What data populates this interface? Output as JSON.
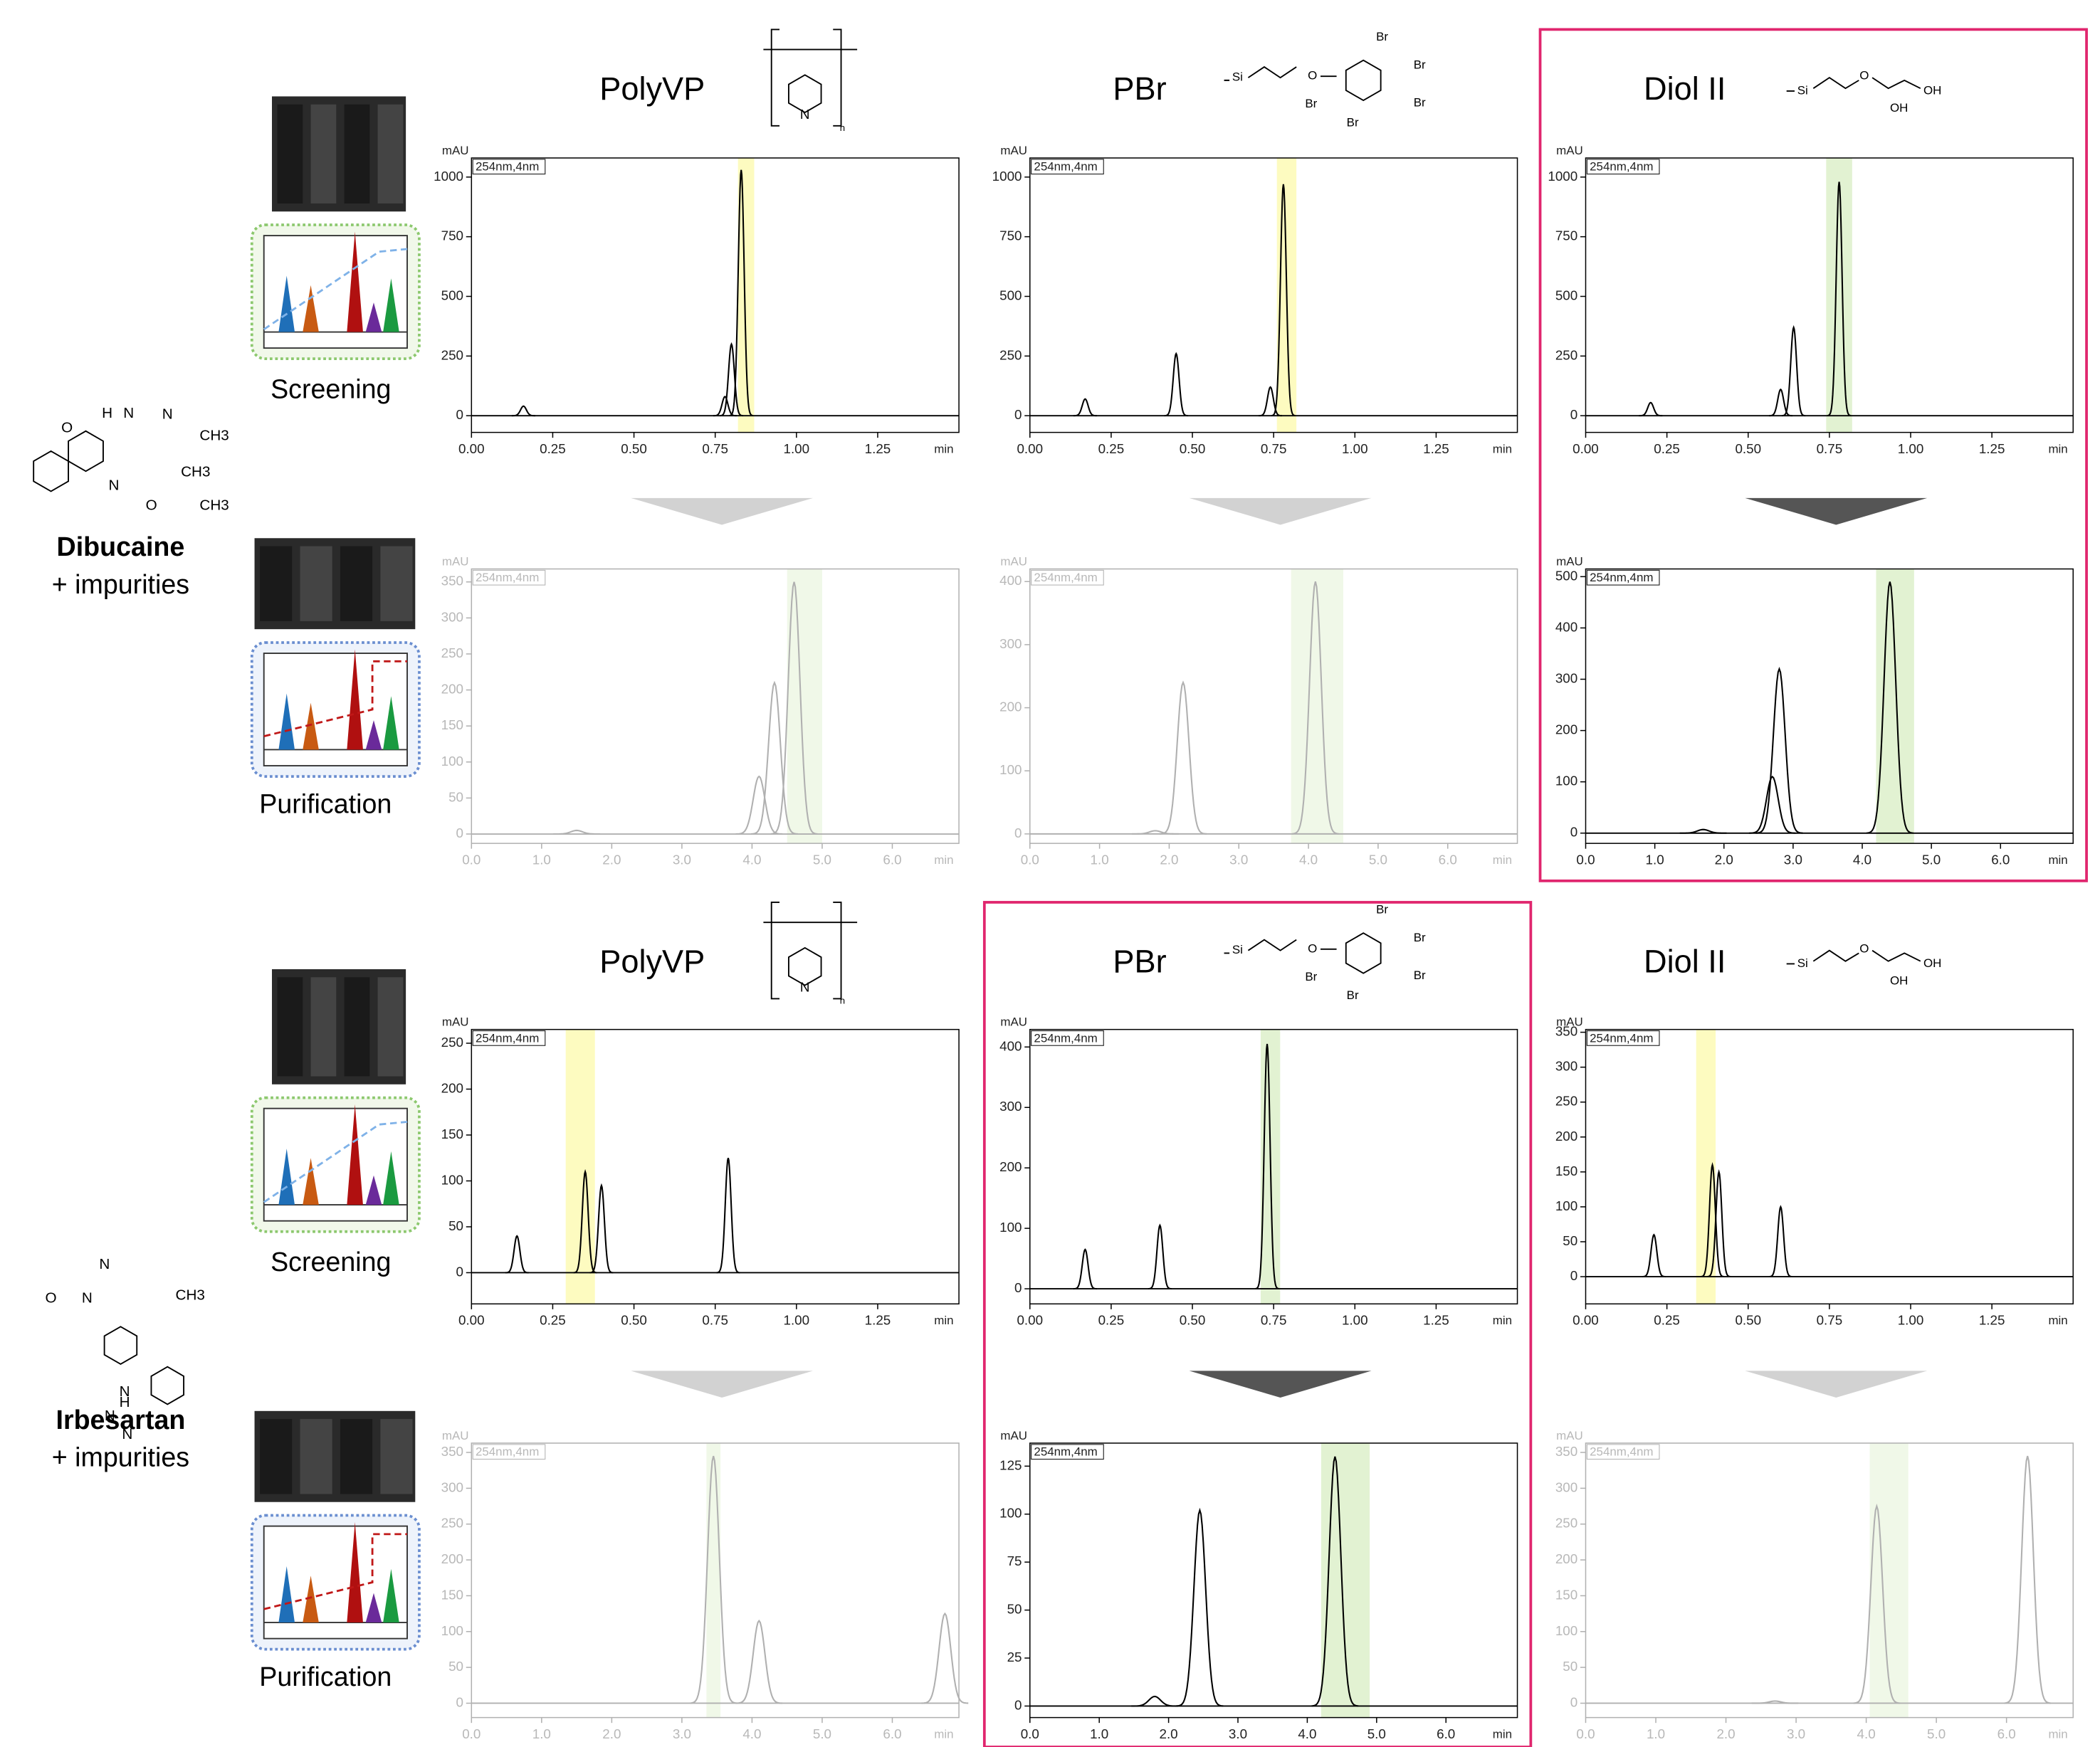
{
  "rows": [
    {
      "compound": "Dibucaine",
      "note": "+ impurities",
      "screening_label": "Screening",
      "purification_label": "Purification",
      "structure": [
        "O",
        "H",
        "N",
        "N",
        "CH3",
        "CH3",
        "N",
        "O",
        "CH3"
      ],
      "columns": [
        {
          "name": "PolyVP",
          "structure": [
            "N",
            "n"
          ],
          "selected": false,
          "screening": {
            "type": "line",
            "y_unit": "mAU",
            "x_unit": "min",
            "detector": "254nm,4nm",
            "active": true,
            "highlight": [
              0.82,
              0.87
            ],
            "highlight_color": "#fdfbc0",
            "xlim": [
              0,
              1.5
            ],
            "xticks": [
              {
                "value": 0,
                "label": "0.00"
              },
              0.25,
              {
                "value": 0.5,
                "label": "0.50"
              },
              0.75,
              {
                "value": 1,
                "label": "1.00"
              },
              1.25
            ],
            "ylim": [
              -70,
              1080
            ],
            "yticks": [
              0,
              250,
              500,
              750,
              1000
            ],
            "peaks": {
              "x": [
                0.16,
                0.78,
                0.8,
                0.83
              ],
              "values": [
                40,
                80,
                300,
                1030
              ]
            }
          },
          "purification": {
            "type": "line",
            "y_unit": "mAU",
            "x_unit": "min",
            "detector": "254nm,4nm",
            "active": false,
            "highlight": [
              4.5,
              5.0
            ],
            "highlight_color": "#e2f2d2",
            "xlim": [
              0,
              6.95
            ],
            "xticks": [
              {
                "value": 0,
                "label": "0.0"
              },
              {
                "value": 1,
                "label": "1.0"
              },
              {
                "value": 2,
                "label": "2.0"
              },
              {
                "value": 3,
                "label": "3.0"
              },
              {
                "value": 4,
                "label": "4.0"
              },
              {
                "value": 5,
                "label": "5.0"
              },
              {
                "value": 6,
                "label": "6.0"
              }
            ],
            "ylim": [
              -13,
              368
            ],
            "yticks": [
              0,
              50,
              100,
              150,
              200,
              250,
              300,
              350
            ],
            "peaks": {
              "x": [
                1.5,
                4.1,
                4.32,
                4.6
              ],
              "values": [
                5,
                80,
                210,
                350
              ]
            }
          }
        },
        {
          "name": "PBr",
          "structure": [
            "Si",
            "O",
            "Br",
            "Br",
            "Br",
            "Br",
            "Br"
          ],
          "selected": false,
          "screening": {
            "type": "line",
            "y_unit": "mAU",
            "x_unit": "min",
            "detector": "254nm,4nm",
            "active": true,
            "highlight": [
              0.76,
              0.82
            ],
            "highlight_color": "#fdfbc0",
            "xlim": [
              0,
              1.5
            ],
            "xticks": [
              {
                "value": 0,
                "label": "0.00"
              },
              0.25,
              {
                "value": 0.5,
                "label": "0.50"
              },
              0.75,
              {
                "value": 1,
                "label": "1.00"
              },
              1.25
            ],
            "ylim": [
              -70,
              1080
            ],
            "yticks": [
              0,
              250,
              500,
              750,
              1000
            ],
            "peaks": {
              "x": [
                0.17,
                0.45,
                0.74,
                0.78
              ],
              "values": [
                70,
                260,
                120,
                970
              ]
            }
          },
          "purification": {
            "type": "line",
            "y_unit": "mAU",
            "x_unit": "min",
            "detector": "254nm,4nm",
            "active": false,
            "highlight": [
              3.75,
              4.5
            ],
            "highlight_color": "#e2f2d2",
            "xlim": [
              0,
              7.0
            ],
            "xticks": [
              {
                "value": 0,
                "label": "0.0"
              },
              {
                "value": 1,
                "label": "1.0"
              },
              {
                "value": 2,
                "label": "2.0"
              },
              {
                "value": 3,
                "label": "3.0"
              },
              {
                "value": 4,
                "label": "4.0"
              },
              {
                "value": 5,
                "label": "5.0"
              },
              {
                "value": 6,
                "label": "6.0"
              }
            ],
            "ylim": [
              -15,
              420
            ],
            "yticks": [
              0,
              100,
              200,
              300,
              400
            ],
            "peaks": {
              "x": [
                1.8,
                2.2,
                4.1
              ],
              "values": [
                5,
                240,
                400
              ]
            }
          }
        },
        {
          "name": "Diol II",
          "structure": [
            "Si",
            "O",
            "OH",
            "OH"
          ],
          "selected": true,
          "screening": {
            "type": "line",
            "y_unit": "mAU",
            "x_unit": "min",
            "detector": "254nm,4nm",
            "active": true,
            "highlight": [
              0.74,
              0.82
            ],
            "highlight_color": "#e2f2d2",
            "xlim": [
              0,
              1.5
            ],
            "xticks": [
              {
                "value": 0,
                "label": "0.00"
              },
              0.25,
              {
                "value": 0.5,
                "label": "0.50"
              },
              0.75,
              {
                "value": 1,
                "label": "1.00"
              },
              1.25
            ],
            "ylim": [
              -70,
              1080
            ],
            "yticks": [
              0,
              250,
              500,
              750,
              1000
            ],
            "peaks": {
              "x": [
                0.2,
                0.6,
                0.64,
                0.78
              ],
              "values": [
                55,
                110,
                370,
                980
              ]
            }
          },
          "purification": {
            "type": "line",
            "y_unit": "mAU",
            "x_unit": "min",
            "detector": "254nm,4nm",
            "active": true,
            "highlight": [
              4.2,
              4.75
            ],
            "highlight_color": "#e2f2d2",
            "xlim": [
              0,
              7.05
            ],
            "xticks": [
              {
                "value": 0,
                "label": "0.0"
              },
              {
                "value": 1,
                "label": "1.0"
              },
              {
                "value": 2,
                "label": "2.0"
              },
              {
                "value": 3,
                "label": "3.0"
              },
              {
                "value": 4,
                "label": "4.0"
              },
              {
                "value": 5,
                "label": "5.0"
              },
              {
                "value": 6,
                "label": "6.0"
              }
            ],
            "ylim": [
              -20,
              515
            ],
            "yticks": [
              0,
              100,
              200,
              300,
              400,
              500
            ],
            "peaks": {
              "x": [
                1.7,
                2.7,
                2.8,
                4.4
              ],
              "values": [
                7,
                110,
                320,
                490
              ]
            }
          }
        }
      ]
    },
    {
      "compound": "Irbesartan",
      "note": "+ impurities",
      "screening_label": "Screening",
      "purification_label": "Purification",
      "structure": [
        "N",
        "O",
        "N",
        "CH3",
        "N",
        "H",
        "N",
        "N"
      ],
      "columns": [
        {
          "name": "PolyVP",
          "structure": [
            "N",
            "n"
          ],
          "selected": false,
          "screening": {
            "type": "line",
            "y_unit": "mAU",
            "x_unit": "min",
            "detector": "254nm,4nm",
            "active": true,
            "highlight": [
              0.29,
              0.38
            ],
            "highlight_color": "#fdfbc0",
            "xlim": [
              0,
              1.5
            ],
            "xticks": [
              {
                "value": 0,
                "label": "0.00"
              },
              0.25,
              {
                "value": 0.5,
                "label": "0.50"
              },
              0.75,
              {
                "value": 1,
                "label": "1.00"
              },
              1.25
            ],
            "ylim": [
              -34,
              265
            ],
            "yticks": [
              0,
              50,
              100,
              150,
              200,
              250
            ],
            "peaks": {
              "x": [
                0.14,
                0.35,
                0.4,
                0.79
              ],
              "values": [
                40,
                110,
                95,
                125
              ]
            }
          },
          "purification": {
            "type": "line",
            "y_unit": "mAU",
            "x_unit": "min",
            "detector": "254nm,4nm",
            "active": false,
            "highlight": [
              3.35,
              3.55
            ],
            "highlight_color": "#e2f2d2",
            "xlim": [
              0,
              6.95
            ],
            "xticks": [
              {
                "value": 0,
                "label": "0.0"
              },
              {
                "value": 1,
                "label": "1.0"
              },
              {
                "value": 2,
                "label": "2.0"
              },
              {
                "value": 3,
                "label": "3.0"
              },
              {
                "value": 4,
                "label": "4.0"
              },
              {
                "value": 5,
                "label": "5.0"
              },
              {
                "value": 6,
                "label": "6.0"
              }
            ],
            "ylim": [
              -20,
              363
            ],
            "yticks": [
              0,
              50,
              100,
              150,
              200,
              250,
              300,
              350
            ],
            "peaks": {
              "x": [
                3.45,
                4.1,
                6.75
              ],
              "values": [
                345,
                115,
                125
              ]
            }
          }
        },
        {
          "name": "PBr",
          "structure": [
            "Si",
            "O",
            "Br",
            "Br",
            "Br",
            "Br",
            "Br"
          ],
          "selected": true,
          "screening": {
            "type": "line",
            "y_unit": "mAU",
            "x_unit": "min",
            "detector": "254nm,4nm",
            "active": true,
            "highlight": [
              0.71,
              0.77
            ],
            "highlight_color": "#e2f2d2",
            "xlim": [
              0,
              1.5
            ],
            "xticks": [
              {
                "value": 0,
                "label": "0.00"
              },
              0.25,
              {
                "value": 0.5,
                "label": "0.50"
              },
              0.75,
              {
                "value": 1,
                "label": "1.00"
              },
              1.25
            ],
            "ylim": [
              -25,
              429
            ],
            "yticks": [
              0,
              100,
              200,
              300,
              400
            ],
            "peaks": {
              "x": [
                0.17,
                0.4,
                0.73
              ],
              "values": [
                65,
                105,
                405
              ]
            }
          },
          "purification": {
            "type": "line",
            "y_unit": "mAU",
            "x_unit": "min",
            "detector": "254nm,4nm",
            "active": true,
            "highlight": [
              4.2,
              4.9
            ],
            "highlight_color": "#e2f2d2",
            "xlim": [
              0,
              7.03
            ],
            "xticks": [
              {
                "value": 0,
                "label": "0.0"
              },
              {
                "value": 1,
                "label": "1.0"
              },
              {
                "value": 2,
                "label": "2.0"
              },
              {
                "value": 3,
                "label": "3.0"
              },
              {
                "value": 4,
                "label": "4.0"
              },
              {
                "value": 5,
                "label": "5.0"
              },
              {
                "value": 6,
                "label": "6.0"
              }
            ],
            "ylim": [
              -6,
              137
            ],
            "yticks": [
              0,
              25,
              50,
              75,
              100,
              125
            ],
            "peaks": {
              "x": [
                1.8,
                2.45,
                4.4
              ],
              "values": [
                5,
                102,
                130
              ]
            }
          }
        },
        {
          "name": "Diol II",
          "structure": [
            "Si",
            "O",
            "OH",
            "OH"
          ],
          "selected": false,
          "screening": {
            "type": "line",
            "y_unit": "mAU",
            "x_unit": "min",
            "detector": "254nm,4nm",
            "active": true,
            "highlight": [
              0.34,
              0.4
            ],
            "highlight_color": "#fdfbc0",
            "xlim": [
              0,
              1.5
            ],
            "xticks": [
              {
                "value": 0,
                "label": "0.00"
              },
              0.25,
              {
                "value": 0.5,
                "label": "0.50"
              },
              0.75,
              {
                "value": 1,
                "label": "1.00"
              },
              1.25
            ],
            "ylim": [
              -39,
              354
            ],
            "yticks": [
              0,
              50,
              100,
              150,
              200,
              250,
              300,
              350
            ],
            "peaks": {
              "x": [
                0.21,
                0.39,
                0.41,
                0.6
              ],
              "values": [
                60,
                160,
                150,
                100
              ]
            }
          },
          "purification": {
            "type": "line",
            "y_unit": "mAU",
            "x_unit": "min",
            "detector": "254nm,4nm",
            "active": false,
            "highlight": [
              4.05,
              4.6
            ],
            "highlight_color": "#e2f2d2",
            "xlim": [
              0,
              6.95
            ],
            "xticks": [
              {
                "value": 0,
                "label": "0.0"
              },
              {
                "value": 1,
                "label": "1.0"
              },
              {
                "value": 2,
                "label": "2.0"
              },
              {
                "value": 3,
                "label": "3.0"
              },
              {
                "value": 4,
                "label": "4.0"
              },
              {
                "value": 5,
                "label": "5.0"
              },
              {
                "value": 6,
                "label": "6.0"
              }
            ],
            "ylim": [
              -20,
              363
            ],
            "yticks": [
              0,
              50,
              100,
              150,
              200,
              250,
              300,
              350
            ],
            "peaks": {
              "x": [
                2.7,
                4.15,
                6.3
              ],
              "values": [
                3,
                275,
                345
              ]
            }
          }
        }
      ]
    }
  ]
}
